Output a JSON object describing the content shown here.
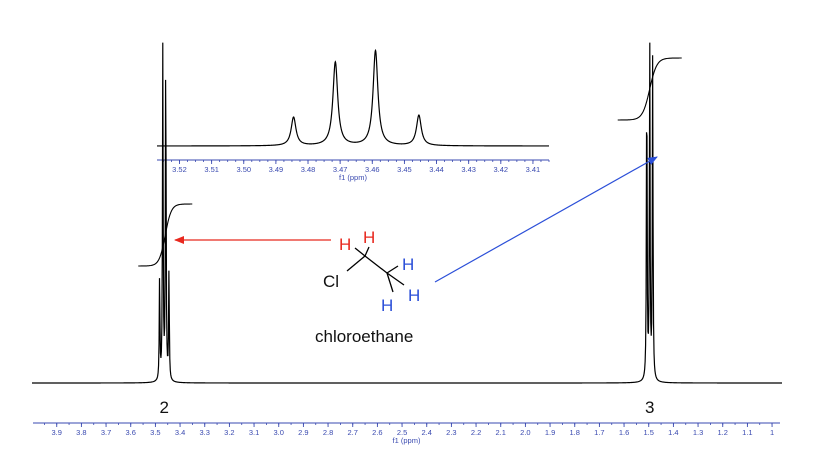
{
  "chart_data": [
    {
      "type": "line",
      "name": "main-spectrum",
      "xlabel": "f1 (ppm)",
      "x_reversed": true,
      "xlim": [
        3.98,
        0.98
      ],
      "ticks": [
        "3.9",
        "3.8",
        "3.7",
        "3.6",
        "3.5",
        "3.4",
        "3.3",
        "3.2",
        "3.1",
        "3.0",
        "2.9",
        "2.8",
        "2.7",
        "2.6",
        "2.5",
        "2.4",
        "2.3",
        "2.2",
        "2.1",
        "2.0",
        "1.9",
        "1.8",
        "1.7",
        "1.6",
        "1.5",
        "1.4",
        "1.3",
        "1.2",
        "1.1",
        "1"
      ],
      "peaks": [
        {
          "ppm": 3.483,
          "rel_height": 0.3
        },
        {
          "ppm": 3.47,
          "rel_height": 0.96
        },
        {
          "ppm": 3.458,
          "rel_height": 1.0
        },
        {
          "ppm": 3.445,
          "rel_height": 0.32
        },
        {
          "ppm": 1.508,
          "rel_height": 0.94
        },
        {
          "ppm": 1.496,
          "rel_height": 1.0
        },
        {
          "ppm": 1.484,
          "rel_height": 0.94
        }
      ],
      "integrals": [
        {
          "center_ppm": 3.46,
          "label": "2"
        },
        {
          "center_ppm": 1.496,
          "label": "3"
        }
      ]
    },
    {
      "type": "line",
      "name": "inset-quartet",
      "xlabel": "f1 (ppm)",
      "x_reversed": true,
      "xlim": [
        3.527,
        3.405
      ],
      "ticks": [
        "3.52",
        "3.51",
        "3.50",
        "3.49",
        "3.48",
        "3.47",
        "3.46",
        "3.45",
        "3.44",
        "3.43",
        "3.42",
        "3.41"
      ],
      "peaks": [
        {
          "ppm": 3.4845,
          "rel_height": 0.3
        },
        {
          "ppm": 3.4715,
          "rel_height": 0.88
        },
        {
          "ppm": 3.459,
          "rel_height": 1.0
        },
        {
          "ppm": 3.4455,
          "rel_height": 0.32
        }
      ]
    }
  ],
  "molecule": {
    "name": "chloroethane",
    "atoms": {
      "cl": "Cl",
      "h": "H"
    },
    "colors": {
      "ch2_h": "#e8291f",
      "ch3_h": "#2b4fd8"
    }
  },
  "colors": {
    "red_arrow": "#e8291f",
    "blue_arrow": "#2b4fd8",
    "axis": "#3a4ab0",
    "trace": "#000000"
  }
}
